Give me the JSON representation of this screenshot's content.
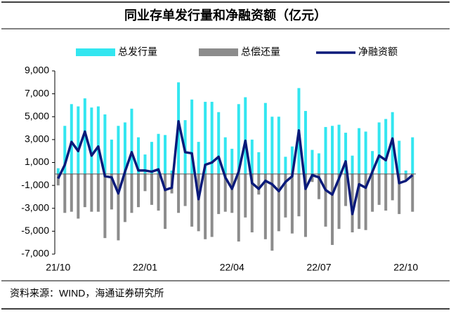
{
  "chart_data": {
    "type": "bar",
    "title": "同业存单发行量和净融资额（亿元）",
    "source": "资料来源：WIND，海通证券研究所",
    "categories": [
      "21/10",
      null,
      null,
      null,
      null,
      null,
      null,
      null,
      null,
      null,
      null,
      null,
      null,
      "22/01",
      null,
      null,
      null,
      null,
      null,
      null,
      null,
      null,
      null,
      null,
      null,
      null,
      "22/04",
      null,
      null,
      null,
      null,
      null,
      null,
      null,
      null,
      null,
      null,
      null,
      null,
      "22/07",
      null,
      null,
      null,
      null,
      null,
      null,
      null,
      null,
      null,
      null,
      null,
      null,
      "22/10",
      null
    ],
    "series": [
      {
        "name": "总发行量",
        "type": "bar",
        "color": "#33e6f0",
        "values": [
          500,
          4200,
          6100,
          5900,
          6600,
          5800,
          5900,
          5200,
          3000,
          4200,
          4500,
          5700,
          3200,
          1700,
          2800,
          3500,
          3400,
          300,
          8000,
          4700,
          6500,
          2800,
          6300,
          6300,
          5400,
          3200,
          2200,
          6100,
          6700,
          3000,
          1900,
          6200,
          5000,
          5000,
          1500,
          2400,
          7500,
          5500,
          2100,
          1800,
          4100,
          4200,
          4300,
          3600,
          1600,
          4000,
          3700,
          2000,
          4500,
          4800,
          5400,
          2900,
          300,
          3200
        ]
      },
      {
        "name": "总偿还量",
        "type": "bar",
        "color": "#8c8c8c",
        "values": [
          -1000,
          -3400,
          -3300,
          -3900,
          -2900,
          -3300,
          -3300,
          -5600,
          -3100,
          -5800,
          -4200,
          -3400,
          -2900,
          -1500,
          -2700,
          -3200,
          -4800,
          -1700,
          -3400,
          -2800,
          -4600,
          -5000,
          -5700,
          -5500,
          -3500,
          -3300,
          -3400,
          -5900,
          -3800,
          -5100,
          -1800,
          -5700,
          -6700,
          -5000,
          -3800,
          -5200,
          -3700,
          -5500,
          -700,
          -2200,
          -4600,
          -6200,
          -4800,
          -2800,
          -5100,
          -4800,
          -4900,
          -3300,
          -2700,
          -3200,
          -2300,
          -3500,
          -500,
          -3300
        ]
      },
      {
        "name": "净融资额",
        "type": "line",
        "color": "#0a1a7a",
        "values": [
          -400,
          800,
          2800,
          2000,
          3700,
          1600,
          2400,
          -200,
          -300,
          -1700,
          200,
          1900,
          300,
          300,
          200,
          400,
          -1400,
          -1200,
          4600,
          1900,
          1800,
          -2200,
          800,
          1000,
          1500,
          -300,
          -1300,
          200,
          2900,
          -800,
          -1300,
          -600,
          -900,
          -1500,
          -700,
          -200,
          3800,
          -1300,
          -100,
          -300,
          -1400,
          -1800,
          -400,
          1100,
          -3500,
          -900,
          -1200,
          200,
          1600,
          1200,
          3100,
          -800,
          -600,
          -100
        ]
      }
    ],
    "ylim": [
      -7000,
      9000
    ],
    "yticks": [
      {
        "value": -7000,
        "label": "-7,000"
      },
      {
        "value": -5000,
        "label": "-5,000"
      },
      {
        "value": -3000,
        "label": "-3,000"
      },
      {
        "value": -1000,
        "label": "-1,000"
      },
      {
        "value": 1000,
        "label": "1,000"
      },
      {
        "value": 3000,
        "label": "3,000"
      },
      {
        "value": 5000,
        "label": "5,000"
      },
      {
        "value": 7000,
        "label": "7,000"
      },
      {
        "value": 9000,
        "label": "9,000"
      }
    ],
    "legend": "top"
  }
}
